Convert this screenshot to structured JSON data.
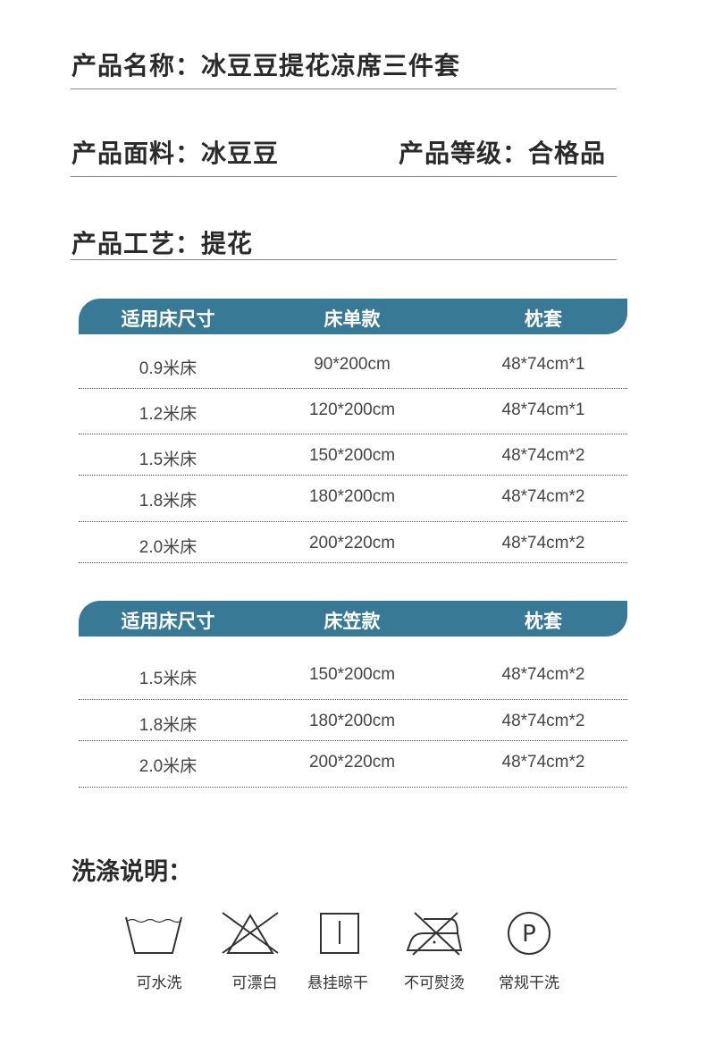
{
  "product": {
    "name": "产品名称：冰豆豆提花凉席三件套",
    "fabric": "产品面料：冰豆豆",
    "grade": "产品等级：合格品",
    "craft": "产品工艺：提花"
  },
  "sheet_table": {
    "headers": [
      "适用床尺寸",
      "床单款",
      "枕套"
    ],
    "rows": [
      [
        "0.9米床",
        "90*200cm",
        "48*74cm*1"
      ],
      [
        "1.2米床",
        "120*200cm",
        "48*74cm*1"
      ],
      [
        "1.5米床",
        "150*200cm",
        "48*74cm*2"
      ],
      [
        "1.8米床",
        "180*200cm",
        "48*74cm*2"
      ],
      [
        "2.0米床",
        "200*220cm",
        "48*74cm*2"
      ]
    ]
  },
  "fitted_table": {
    "headers": [
      "适用床尺寸",
      "床笠款",
      "枕套"
    ],
    "rows": [
      [
        "1.5米床",
        "150*200cm",
        "48*74cm*2"
      ],
      [
        "1.8米床",
        "180*200cm",
        "48*74cm*2"
      ],
      [
        "2.0米床",
        "200*220cm",
        "48*74cm*2"
      ]
    ]
  },
  "washing": {
    "title": "洗涤说明：",
    "icons": [
      {
        "icon": "wash-basin-icon",
        "label": "可水洗"
      },
      {
        "icon": "no-bleach-icon",
        "label": "可漂白"
      },
      {
        "icon": "hang-dry-icon",
        "label": "悬挂晾干"
      },
      {
        "icon": "no-iron-icon",
        "label": "不可熨烫"
      },
      {
        "icon": "dry-clean-p-icon",
        "label": "常规干洗"
      }
    ]
  },
  "colors": {
    "header_bg": "#387a96"
  }
}
